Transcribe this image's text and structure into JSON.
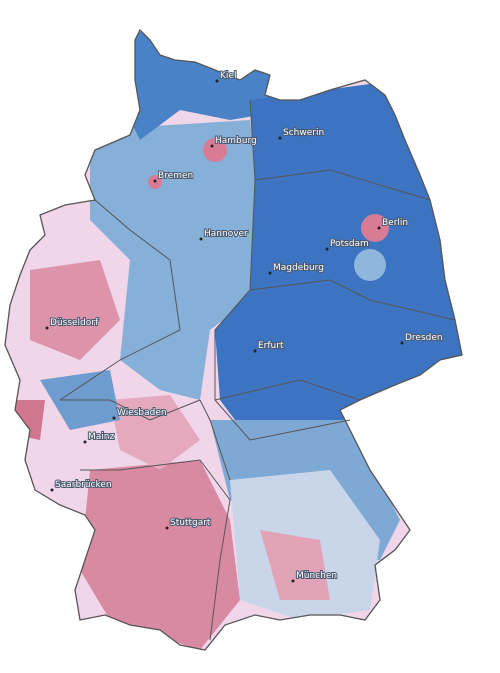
{
  "cities": [
    {
      "name": "Kiel"
    },
    {
      "name": "Hamburg"
    },
    {
      "name": "Schwerin"
    },
    {
      "name": "Bremen"
    },
    {
      "name": "Berlin"
    },
    {
      "name": "Hannover"
    },
    {
      "name": "Potsdam"
    },
    {
      "name": "Magdeburg"
    },
    {
      "name": "Düsseldorf"
    },
    {
      "name": "Erfurt"
    },
    {
      "name": "Dresden"
    },
    {
      "name": "Wiesbaden"
    },
    {
      "name": "Mainz"
    },
    {
      "name": "Saarbrücken"
    },
    {
      "name": "Stuttgart"
    },
    {
      "name": "München"
    }
  ]
}
